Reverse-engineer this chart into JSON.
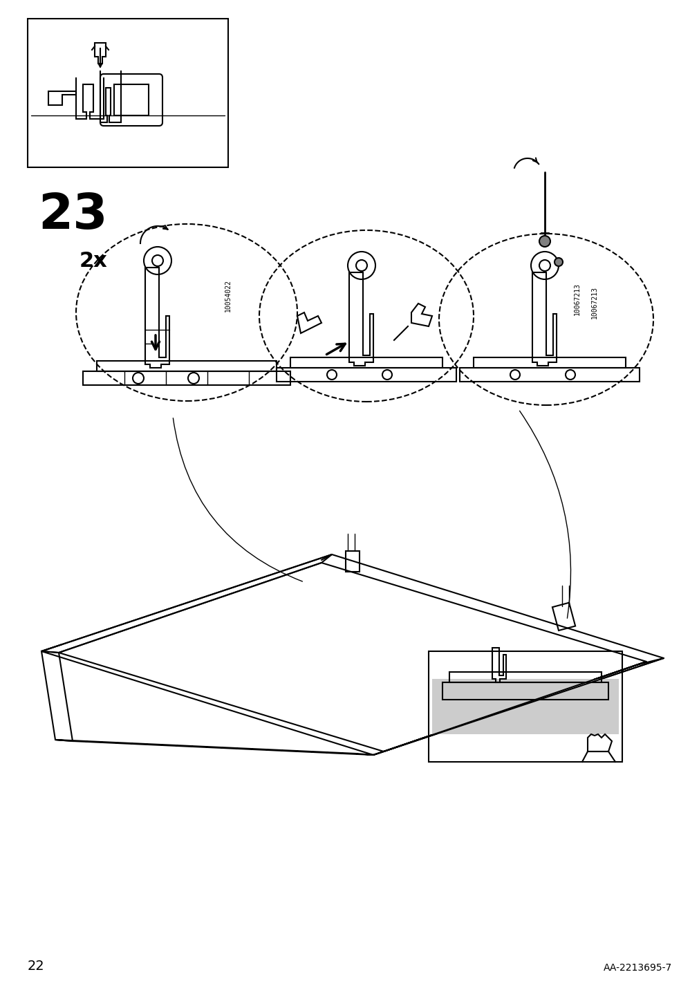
{
  "page_number": "22",
  "doc_id": "AA-2213695-7",
  "step_number": "23",
  "part_ids": [
    "10054022",
    "10067213"
  ],
  "quantity": "2x",
  "bg_color": "#ffffff",
  "line_color": "#000000",
  "fig_width": 10.12,
  "fig_height": 14.32,
  "dpi": 100
}
